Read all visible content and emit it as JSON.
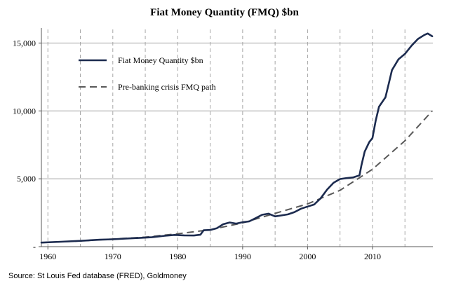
{
  "chart_data": {
    "type": "line",
    "title": "Fiat Money Quantity (FMQ)  $bn",
    "xlabel": "",
    "ylabel": "",
    "xlim": [
      1959,
      2019.3
    ],
    "ylim": [
      0,
      16000
    ],
    "x_ticks": [
      {
        "value": 1960,
        "label": "1960"
      },
      {
        "value": 1970,
        "label": "1970"
      },
      {
        "value": 1980,
        "label": "1980"
      },
      {
        "value": 1990,
        "label": "1990"
      },
      {
        "value": 2000,
        "label": "2000"
      },
      {
        "value": 2010,
        "label": "2010"
      }
    ],
    "x_gridlines": [
      1960,
      1965,
      1970,
      1975,
      1980,
      1985,
      1990,
      1995,
      2000,
      2005,
      2010,
      2015
    ],
    "y_ticks": [
      {
        "value": 0,
        "label": "-"
      },
      {
        "value": 5000,
        "label": "5,000"
      },
      {
        "value": 10000,
        "label": "10,000"
      },
      {
        "value": 15000,
        "label": "15,000"
      }
    ],
    "y_gridlines": [
      5000,
      10000,
      15000
    ],
    "grid": {
      "vertical": "dashed",
      "horizontal": "solid"
    },
    "legend_placement": "top-left",
    "series": [
      {
        "name": "Fiat Money Quantity $bn",
        "color": "#1c2b4f",
        "style": "solid",
        "points": [
          [
            1959,
            300
          ],
          [
            1962,
            360
          ],
          [
            1965,
            430
          ],
          [
            1968,
            510
          ],
          [
            1970,
            540
          ],
          [
            1972,
            600
          ],
          [
            1974,
            640
          ],
          [
            1976,
            690
          ],
          [
            1978,
            800
          ],
          [
            1979.5,
            860
          ],
          [
            1981,
            830
          ],
          [
            1982.5,
            820
          ],
          [
            1983.5,
            880
          ],
          [
            1984,
            1210
          ],
          [
            1985,
            1230
          ],
          [
            1986,
            1350
          ],
          [
            1987,
            1650
          ],
          [
            1988,
            1780
          ],
          [
            1989,
            1700
          ],
          [
            1990,
            1800
          ],
          [
            1991,
            1860
          ],
          [
            1992,
            2100
          ],
          [
            1993,
            2350
          ],
          [
            1994,
            2430
          ],
          [
            1995,
            2230
          ],
          [
            1996,
            2300
          ],
          [
            1997,
            2380
          ],
          [
            1998,
            2550
          ],
          [
            1999,
            2800
          ],
          [
            2000,
            2950
          ],
          [
            2001,
            3100
          ],
          [
            2002,
            3550
          ],
          [
            2003,
            4200
          ],
          [
            2004,
            4700
          ],
          [
            2005,
            4980
          ],
          [
            2006,
            5050
          ],
          [
            2007,
            5100
          ],
          [
            2008,
            5250
          ],
          [
            2008.3,
            6000
          ],
          [
            2008.8,
            7000
          ],
          [
            2009.5,
            7700
          ],
          [
            2010,
            8000
          ],
          [
            2010.5,
            9300
          ],
          [
            2011,
            10300
          ],
          [
            2012,
            11000
          ],
          [
            2012.5,
            12000
          ],
          [
            2013,
            13000
          ],
          [
            2014,
            13800
          ],
          [
            2015,
            14200
          ],
          [
            2016,
            14800
          ],
          [
            2017,
            15300
          ],
          [
            2018,
            15600
          ],
          [
            2018.5,
            15700
          ],
          [
            2019.2,
            15500
          ]
        ]
      },
      {
        "name": "Pre-banking crisis FMQ path",
        "color": "#595959",
        "style": "dashed",
        "points": [
          [
            1959,
            300
          ],
          [
            1965,
            420
          ],
          [
            1970,
            560
          ],
          [
            1975,
            700
          ],
          [
            1980,
            950
          ],
          [
            1985,
            1250
          ],
          [
            1990,
            1750
          ],
          [
            1995,
            2450
          ],
          [
            2000,
            3150
          ],
          [
            2005,
            4150
          ],
          [
            2010,
            5700
          ],
          [
            2015,
            7800
          ],
          [
            2019.2,
            10000
          ]
        ]
      }
    ]
  },
  "source": "Source: St Louis Fed  database (FRED), Goldmoney"
}
